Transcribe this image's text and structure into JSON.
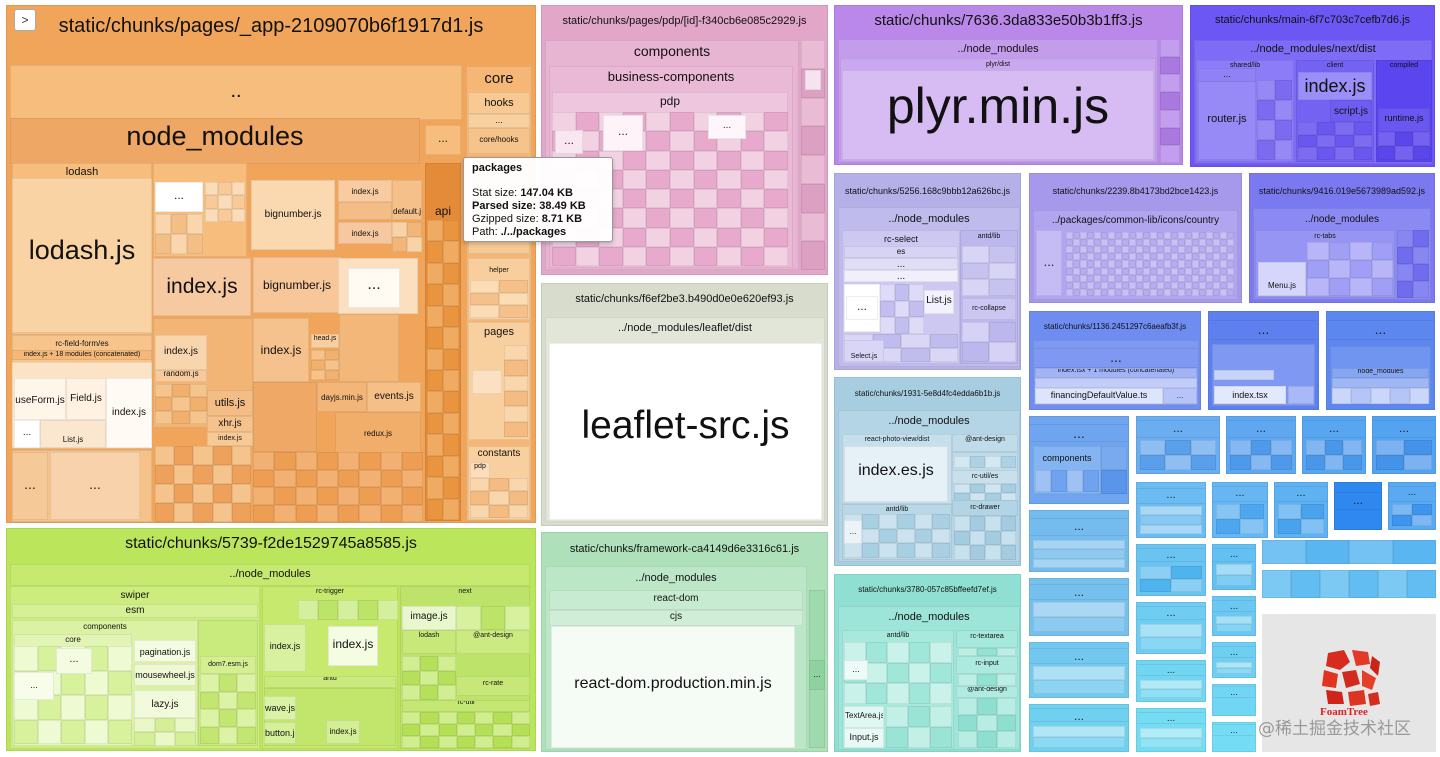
{
  "toggle_icon": "chevron-right-icon",
  "ellipsis": "...",
  "chunks": {
    "app": {
      "title": "static/chunks/pages/_app-2109070b6f1917d1.js",
      "dotdot": "..",
      "node_modules": "node_modules",
      "lodash": "lodash",
      "lodash_js": "lodash.js",
      "index_js": "index.js",
      "bignumber": "bignumber.js",
      "bignumber_js": "bignumber.js",
      "rc_field_form": "rc-field-form/es",
      "concat": "index.js + 18 modules (concatenated)",
      "useform": "useForm.js",
      "field": "Field.js",
      "list": "List.js",
      "random": "random.js",
      "utils": "utils.js",
      "xhr": "xhr.js",
      "dayjs": "dayjs.min.js",
      "events": "events.js",
      "redux": "redux.js",
      "head": "head.js",
      "default": "default.js",
      "api": "api",
      "core": "core",
      "hooks": "hooks",
      "core_hooks": "core/hooks",
      "helper": "helper",
      "pages": "pages",
      "constants": "constants",
      "pdp": "pdp"
    },
    "pdp": {
      "title": "static/chunks/pages/pdp/[id]-f340cb6e085c2929.js",
      "components": "components",
      "business": "business-components",
      "pdp": "pdp"
    },
    "plyr": {
      "title": "static/chunks/7636.3da833e50b3b1ff3.js",
      "nm": "../node_modules",
      "dist": "plyr/dist",
      "main": "plyr.min.js"
    },
    "main": {
      "title": "static/chunks/main-6f7c703c7cefb7d6.js",
      "nm": "../node_modules/next/dist",
      "shared": "shared/lib",
      "client": "client",
      "compiled": "compiled",
      "router": "router.js",
      "index": "index.js",
      "script": "script.js",
      "runtime": "runtime.js"
    },
    "leaflet": {
      "title": "static/chunks/f6ef2be3.b490d0e0e620ef93.js",
      "nm": "../node_modules/leaflet/dist",
      "main": "leaflet-src.js"
    },
    "c5256": {
      "title": "static/chunks/5256.168c9bbb12a626bc.js",
      "nm": "../node_modules",
      "rcselect": "rc-select",
      "es": "es",
      "antd": "antd/lib",
      "list": "List.js",
      "select": "Select.js",
      "collapse": "rc-collapse"
    },
    "c2239": {
      "title": "static/chunks/2239.8b4173bd2bce1423.js",
      "path": "../packages/common-lib/icons/country"
    },
    "c9416": {
      "title": "static/chunks/9416.019e5673989ad592.js",
      "nm": "../node_modules",
      "tabs": "rc-tabs",
      "menu": "Menu.js"
    },
    "c1136": {
      "title": "static/chunks/1136.2451297c6aeafb3f.js",
      "concat": "index.tsx + 1 modules (concatenated)",
      "fin": "financingDefaultValue.ts"
    },
    "c1931": {
      "title": "static/chunks/1931-5e8d4fc4edda6b1b.js",
      "nm": "../node_modules",
      "photo": "react-photo-view/dist",
      "antdesign": "@ant-design",
      "rcutil": "rc-util/es",
      "index": "index.es.js",
      "antd": "antd/lib",
      "drawer": "rc-drawer"
    },
    "c5739": {
      "title": "static/chunks/5739-f2de1529745a8585.js",
      "nm": "../node_modules",
      "swiper": "swiper",
      "esm": "esm",
      "components": "components",
      "core": "core",
      "pagination": "pagination.js",
      "mousewheel": "mousewheel.js",
      "lazy": "lazy.js",
      "dom7": "dom7.esm.js",
      "rctrigger": "rc-trigger",
      "next": "next",
      "image": "image.js",
      "index": "index.js",
      "lodash": "lodash",
      "antdesign": "@ant-design",
      "antd": "antd",
      "rcrate": "rc-rate",
      "rcutil": "rc-util",
      "wave": "wave.js",
      "button": "button.js"
    },
    "framework": {
      "title": "static/chunks/framework-ca4149d6e3316c61.js",
      "nm": "../node_modules",
      "reactdom": "react-dom",
      "cjs": "cjs",
      "main": "react-dom.production.min.js"
    },
    "c3780": {
      "title": "static/chunks/3780-057c85bffeefd7ef.js",
      "nm": "../node_modules",
      "antd": "antd/lib",
      "textarea": "rc-textarea",
      "input": "rc-input",
      "antdesign": "@ant-design",
      "textarea_js": "TextArea.js",
      "input_js": "Input.js"
    },
    "misc": {
      "components": "components",
      "nm": "node_modules",
      "indextsx": "index.tsx",
      "dot": ".."
    }
  },
  "tooltip": {
    "name": "packages",
    "stat_label": "Stat size:",
    "stat": "147.04 KB",
    "parsed_label": "Parsed size:",
    "parsed": "38.49 KB",
    "gzip_label": "Gzipped size:",
    "gzip": "8.71 KB",
    "path_label": "Path:",
    "path": "./../packages"
  },
  "foamtree": {
    "label": "FoamTree",
    "icon": "foamtree-logo-icon"
  },
  "watermark": "@稀土掘金技术社区"
}
